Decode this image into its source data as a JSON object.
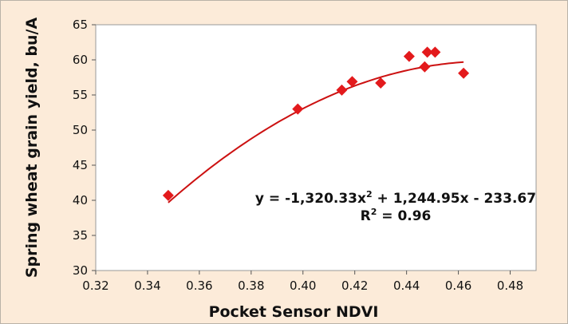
{
  "chart_data": {
    "type": "scatter",
    "xlabel": "Pocket Sensor NDVI",
    "ylabel": "Spring wheat grain yield, bu/A",
    "xlim": [
      0.32,
      0.49
    ],
    "ylim": [
      30,
      65
    ],
    "x_ticks": [
      "0.32",
      "0.34",
      "0.36",
      "0.38",
      "0.40",
      "0.42",
      "0.44",
      "0.46",
      "0.48"
    ],
    "y_ticks": [
      "30",
      "35",
      "40",
      "45",
      "50",
      "55",
      "60",
      "65"
    ],
    "grid": false,
    "colors": {
      "points": "#e31a1c",
      "trendline": "#cc1111",
      "background": "#fcebd9",
      "plot_area": "#ffffff"
    },
    "points": [
      {
        "x": 0.348,
        "y": 40.7
      },
      {
        "x": 0.398,
        "y": 53.0
      },
      {
        "x": 0.415,
        "y": 55.7
      },
      {
        "x": 0.419,
        "y": 56.9
      },
      {
        "x": 0.43,
        "y": 56.7
      },
      {
        "x": 0.441,
        "y": 60.5
      },
      {
        "x": 0.447,
        "y": 59.0
      },
      {
        "x": 0.448,
        "y": 61.1
      },
      {
        "x": 0.451,
        "y": 61.1
      },
      {
        "x": 0.462,
        "y": 58.1
      }
    ],
    "trendline": {
      "type": "polynomial",
      "coefficients": [
        -1320.33,
        1244.95,
        -233.67
      ],
      "x_range": [
        0.348,
        0.462
      ]
    },
    "annotation": {
      "line1_prefix": "y = -1,320.33x",
      "line1_sup": "2",
      "line1_suffix": " + 1,244.95x - 233.67",
      "line2_prefix": "R",
      "line2_sup": "2",
      "line2_suffix": " = 0.96"
    }
  }
}
